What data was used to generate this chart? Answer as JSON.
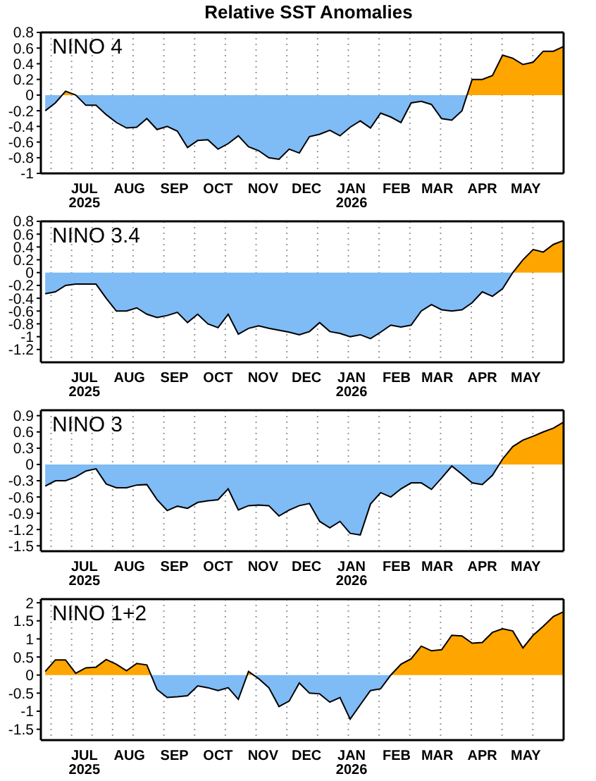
{
  "chart_data": [
    {
      "type": "area",
      "title": "Relative SST Anomalies",
      "annotations": [
        "NINO 4"
      ],
      "grid": true,
      "x": [
        "2025-06-04",
        "2025-06-11",
        "2025-06-18",
        "2025-06-25",
        "2025-07-02",
        "2025-07-09",
        "2025-07-16",
        "2025-07-23",
        "2025-07-30",
        "2025-08-06",
        "2025-08-13",
        "2025-08-20",
        "2025-08-27",
        "2025-09-03",
        "2025-09-10",
        "2025-09-17",
        "2025-09-24",
        "2025-10-01",
        "2025-10-08",
        "2025-10-15",
        "2025-10-22",
        "2025-10-29",
        "2025-11-05",
        "2025-11-12",
        "2025-11-19",
        "2025-11-26",
        "2025-12-03",
        "2025-12-10",
        "2025-12-17",
        "2025-12-24",
        "2025-12-31",
        "2026-01-07",
        "2026-01-14",
        "2026-01-21",
        "2026-01-28",
        "2026-02-04",
        "2026-02-11",
        "2026-02-18",
        "2026-02-25",
        "2026-03-04",
        "2026-03-11",
        "2026-03-18",
        "2026-03-25",
        "2026-04-01",
        "2026-04-08",
        "2026-04-15",
        "2026-04-22",
        "2026-04-29",
        "2026-05-06",
        "2026-05-13",
        "2026-05-20",
        "2026-05-27"
      ],
      "series": [
        {
          "values": [
            -0.2,
            -0.1,
            0.05,
            0.0,
            -0.13,
            -0.13,
            -0.25,
            -0.35,
            -0.42,
            -0.41,
            -0.3,
            -0.44,
            -0.4,
            -0.46,
            -0.67,
            -0.58,
            -0.57,
            -0.69,
            -0.62,
            -0.52,
            -0.66,
            -0.71,
            -0.8,
            -0.82,
            -0.69,
            -0.74,
            -0.53,
            -0.5,
            -0.45,
            -0.52,
            -0.41,
            -0.33,
            -0.42,
            -0.23,
            -0.28,
            -0.35,
            -0.1,
            -0.08,
            -0.12,
            -0.3,
            -0.32,
            -0.2,
            0.2,
            0.2,
            0.25,
            0.51,
            0.47,
            0.39,
            0.42,
            0.56,
            0.56,
            0.62
          ],
          "color": "#000000",
          "colors": [
            "#7fbbf5",
            "#7fbbf5",
            "#ffa500",
            "#ffa500",
            "#7fbbf5",
            "#7fbbf5",
            "#7fbbf5",
            "#7fbbf5",
            "#7fbbf5",
            "#7fbbf5",
            "#7fbbf5",
            "#7fbbf5",
            "#7fbbf5",
            "#7fbbf5",
            "#7fbbf5",
            "#7fbbf5",
            "#7fbbf5",
            "#7fbbf5",
            "#7fbbf5",
            "#7fbbf5",
            "#7fbbf5",
            "#7fbbf5",
            "#7fbbf5",
            "#7fbbf5",
            "#7fbbf5",
            "#7fbbf5",
            "#7fbbf5",
            "#7fbbf5",
            "#7fbbf5",
            "#7fbbf5",
            "#7fbbf5",
            "#7fbbf5",
            "#7fbbf5",
            "#7fbbf5",
            "#7fbbf5",
            "#7fbbf5",
            "#7fbbf5",
            "#7fbbf5",
            "#7fbbf5",
            "#7fbbf5",
            "#7fbbf5",
            "#7fbbf5",
            "#ffa500",
            "#ffa500",
            "#ffa500",
            "#ffa500",
            "#ffa500",
            "#ffa500",
            "#ffa500",
            "#ffa500",
            "#ffa500",
            "#ffa500"
          ]
        }
      ],
      "xlim": [
        "2025-06-01",
        "2026-05-27"
      ],
      "xticks": [
        {
          "value": "2025-07-01",
          "label": "JUL\n2025"
        },
        {
          "value": "2025-08-01",
          "label": "AUG"
        },
        {
          "value": "2025-09-01",
          "label": "SEP"
        },
        {
          "value": "2025-10-01",
          "label": "OCT"
        },
        {
          "value": "2025-11-01",
          "label": "NOV"
        },
        {
          "value": "2025-12-01",
          "label": "DEC"
        },
        {
          "value": "2026-01-01",
          "label": "JAN\n2026"
        },
        {
          "value": "2026-02-01",
          "label": "FEB"
        },
        {
          "value": "2026-03-01",
          "label": "MAR"
        },
        {
          "value": "2026-04-01",
          "label": "APR"
        },
        {
          "value": "2026-05-01",
          "label": "MAY"
        }
      ],
      "ylim": [
        -1,
        0.8
      ],
      "yticks": [
        -1,
        -0.8,
        -0.6,
        -0.4,
        -0.2,
        0,
        0.2,
        0.4,
        0.6,
        0.8
      ]
    },
    {
      "type": "area",
      "annotations": [
        "NINO 3.4"
      ],
      "grid": true,
      "x": [
        "2025-06-04",
        "2025-06-11",
        "2025-06-18",
        "2025-06-25",
        "2025-07-02",
        "2025-07-09",
        "2025-07-16",
        "2025-07-23",
        "2025-07-30",
        "2025-08-06",
        "2025-08-13",
        "2025-08-20",
        "2025-08-27",
        "2025-09-03",
        "2025-09-10",
        "2025-09-17",
        "2025-09-24",
        "2025-10-01",
        "2025-10-08",
        "2025-10-15",
        "2025-10-22",
        "2025-10-29",
        "2025-11-05",
        "2025-11-12",
        "2025-11-19",
        "2025-11-26",
        "2025-12-03",
        "2025-12-10",
        "2025-12-17",
        "2025-12-24",
        "2025-12-31",
        "2026-01-07",
        "2026-01-14",
        "2026-01-21",
        "2026-01-28",
        "2026-02-04",
        "2026-02-11",
        "2026-02-18",
        "2026-02-25",
        "2026-03-04",
        "2026-03-11",
        "2026-03-18",
        "2026-03-25",
        "2026-04-01",
        "2026-04-08",
        "2026-04-15",
        "2026-04-22",
        "2026-04-29",
        "2026-05-06",
        "2026-05-13",
        "2026-05-20",
        "2026-05-27"
      ],
      "series": [
        {
          "values": [
            -0.33,
            -0.3,
            -0.2,
            -0.18,
            -0.18,
            -0.18,
            -0.4,
            -0.6,
            -0.6,
            -0.55,
            -0.65,
            -0.7,
            -0.67,
            -0.62,
            -0.78,
            -0.65,
            -0.8,
            -0.86,
            -0.65,
            -0.96,
            -0.87,
            -0.83,
            -0.87,
            -0.9,
            -0.93,
            -0.97,
            -0.92,
            -0.78,
            -0.92,
            -0.95,
            -1.0,
            -0.97,
            -1.03,
            -0.93,
            -0.82,
            -0.85,
            -0.82,
            -0.6,
            -0.5,
            -0.58,
            -0.6,
            -0.58,
            -0.47,
            -0.3,
            -0.37,
            -0.25,
            0.0,
            0.2,
            0.36,
            0.32,
            0.44,
            0.5
          ],
          "color": "#000000",
          "colors": [
            "#7fbbf5",
            "#7fbbf5",
            "#7fbbf5",
            "#7fbbf5",
            "#7fbbf5",
            "#7fbbf5",
            "#7fbbf5",
            "#7fbbf5",
            "#7fbbf5",
            "#7fbbf5",
            "#7fbbf5",
            "#7fbbf5",
            "#7fbbf5",
            "#7fbbf5",
            "#7fbbf5",
            "#7fbbf5",
            "#7fbbf5",
            "#7fbbf5",
            "#7fbbf5",
            "#7fbbf5",
            "#7fbbf5",
            "#7fbbf5",
            "#7fbbf5",
            "#7fbbf5",
            "#7fbbf5",
            "#7fbbf5",
            "#7fbbf5",
            "#7fbbf5",
            "#7fbbf5",
            "#7fbbf5",
            "#7fbbf5",
            "#7fbbf5",
            "#7fbbf5",
            "#7fbbf5",
            "#7fbbf5",
            "#7fbbf5",
            "#7fbbf5",
            "#7fbbf5",
            "#7fbbf5",
            "#7fbbf5",
            "#7fbbf5",
            "#7fbbf5",
            "#7fbbf5",
            "#7fbbf5",
            "#7fbbf5",
            "#7fbbf5",
            "#ffa500",
            "#ffa500",
            "#ffa500",
            "#ffa500",
            "#ffa500",
            "#ffa500"
          ]
        }
      ],
      "xlim": [
        "2025-06-01",
        "2026-05-27"
      ],
      "xticks": [
        {
          "value": "2025-07-01",
          "label": "JUL\n2025"
        },
        {
          "value": "2025-08-01",
          "label": "AUG"
        },
        {
          "value": "2025-09-01",
          "label": "SEP"
        },
        {
          "value": "2025-10-01",
          "label": "OCT"
        },
        {
          "value": "2025-11-01",
          "label": "NOV"
        },
        {
          "value": "2025-12-01",
          "label": "DEC"
        },
        {
          "value": "2026-01-01",
          "label": "JAN\n2026"
        },
        {
          "value": "2026-02-01",
          "label": "FEB"
        },
        {
          "value": "2026-03-01",
          "label": "MAR"
        },
        {
          "value": "2026-04-01",
          "label": "APR"
        },
        {
          "value": "2026-05-01",
          "label": "MAY"
        }
      ],
      "ylim": [
        -1.4,
        0.8
      ],
      "yticks": [
        -1.2,
        -1,
        -0.8,
        -0.6,
        -0.4,
        -0.2,
        0,
        0.2,
        0.4,
        0.6,
        0.8
      ]
    },
    {
      "type": "area",
      "annotations": [
        "NINO 3"
      ],
      "grid": true,
      "x": [
        "2025-06-04",
        "2025-06-11",
        "2025-06-18",
        "2025-06-25",
        "2025-07-02",
        "2025-07-09",
        "2025-07-16",
        "2025-07-23",
        "2025-07-30",
        "2025-08-06",
        "2025-08-13",
        "2025-08-20",
        "2025-08-27",
        "2025-09-03",
        "2025-09-10",
        "2025-09-17",
        "2025-09-24",
        "2025-10-01",
        "2025-10-08",
        "2025-10-15",
        "2025-10-22",
        "2025-10-29",
        "2025-11-05",
        "2025-11-12",
        "2025-11-19",
        "2025-11-26",
        "2025-12-03",
        "2025-12-10",
        "2025-12-17",
        "2025-12-24",
        "2025-12-31",
        "2026-01-07",
        "2026-01-14",
        "2026-01-21",
        "2026-01-28",
        "2026-02-04",
        "2026-02-11",
        "2026-02-18",
        "2026-02-25",
        "2026-03-04",
        "2026-03-11",
        "2026-03-18",
        "2026-03-25",
        "2026-04-01",
        "2026-04-08",
        "2026-04-15",
        "2026-04-22",
        "2026-04-29",
        "2026-05-06",
        "2026-05-13",
        "2026-05-20",
        "2026-05-27"
      ],
      "series": [
        {
          "values": [
            -0.4,
            -0.3,
            -0.3,
            -0.23,
            -0.12,
            -0.08,
            -0.36,
            -0.43,
            -0.43,
            -0.38,
            -0.37,
            -0.65,
            -0.85,
            -0.77,
            -0.81,
            -0.7,
            -0.67,
            -0.65,
            -0.45,
            -0.84,
            -0.76,
            -0.75,
            -0.76,
            -0.95,
            -0.84,
            -0.76,
            -0.72,
            -1.05,
            -1.17,
            -1.05,
            -1.27,
            -1.3,
            -0.73,
            -0.52,
            -0.6,
            -0.45,
            -0.34,
            -0.34,
            -0.46,
            -0.25,
            -0.03,
            -0.18,
            -0.34,
            -0.37,
            -0.2,
            0.1,
            0.33,
            0.45,
            0.52,
            0.6,
            0.67,
            0.78
          ],
          "color": "#000000",
          "colors": [
            "#7fbbf5",
            "#7fbbf5",
            "#7fbbf5",
            "#7fbbf5",
            "#7fbbf5",
            "#7fbbf5",
            "#7fbbf5",
            "#7fbbf5",
            "#7fbbf5",
            "#7fbbf5",
            "#7fbbf5",
            "#7fbbf5",
            "#7fbbf5",
            "#7fbbf5",
            "#7fbbf5",
            "#7fbbf5",
            "#7fbbf5",
            "#7fbbf5",
            "#7fbbf5",
            "#7fbbf5",
            "#7fbbf5",
            "#7fbbf5",
            "#7fbbf5",
            "#7fbbf5",
            "#7fbbf5",
            "#7fbbf5",
            "#7fbbf5",
            "#7fbbf5",
            "#7fbbf5",
            "#7fbbf5",
            "#7fbbf5",
            "#7fbbf5",
            "#7fbbf5",
            "#7fbbf5",
            "#7fbbf5",
            "#7fbbf5",
            "#7fbbf5",
            "#7fbbf5",
            "#7fbbf5",
            "#7fbbf5",
            "#7fbbf5",
            "#7fbbf5",
            "#7fbbf5",
            "#7fbbf5",
            "#7fbbf5",
            "#ffa500",
            "#ffa500",
            "#ffa500",
            "#ffa500",
            "#ffa500",
            "#ffa500",
            "#ffa500"
          ]
        }
      ],
      "xlim": [
        "2025-06-01",
        "2026-05-27"
      ],
      "xticks": [
        {
          "value": "2025-07-01",
          "label": "JUL\n2025"
        },
        {
          "value": "2025-08-01",
          "label": "AUG"
        },
        {
          "value": "2025-09-01",
          "label": "SEP"
        },
        {
          "value": "2025-10-01",
          "label": "OCT"
        },
        {
          "value": "2025-11-01",
          "label": "NOV"
        },
        {
          "value": "2025-12-01",
          "label": "DEC"
        },
        {
          "value": "2026-01-01",
          "label": "JAN\n2026"
        },
        {
          "value": "2026-02-01",
          "label": "FEB"
        },
        {
          "value": "2026-03-01",
          "label": "MAR"
        },
        {
          "value": "2026-04-01",
          "label": "APR"
        },
        {
          "value": "2026-05-01",
          "label": "MAY"
        }
      ],
      "ylim": [
        -1.6,
        1.0
      ],
      "yticks": [
        -1.5,
        -1.2,
        -0.9,
        -0.6,
        -0.3,
        0,
        0.3,
        0.6,
        0.9
      ]
    },
    {
      "type": "area",
      "annotations": [
        "NINO 1+2"
      ],
      "grid": true,
      "x": [
        "2025-06-04",
        "2025-06-11",
        "2025-06-18",
        "2025-06-25",
        "2025-07-02",
        "2025-07-09",
        "2025-07-16",
        "2025-07-23",
        "2025-07-30",
        "2025-08-06",
        "2025-08-13",
        "2025-08-20",
        "2025-08-27",
        "2025-09-03",
        "2025-09-10",
        "2025-09-17",
        "2025-09-24",
        "2025-10-01",
        "2025-10-08",
        "2025-10-15",
        "2025-10-22",
        "2025-10-29",
        "2025-11-05",
        "2025-11-12",
        "2025-11-19",
        "2025-11-26",
        "2025-12-03",
        "2025-12-10",
        "2025-12-17",
        "2025-12-24",
        "2025-12-31",
        "2026-01-07",
        "2026-01-14",
        "2026-01-21",
        "2026-01-28",
        "2026-02-04",
        "2026-02-11",
        "2026-02-18",
        "2026-02-25",
        "2026-03-04",
        "2026-03-11",
        "2026-03-18",
        "2026-03-25",
        "2026-04-01",
        "2026-04-08",
        "2026-04-15",
        "2026-04-22",
        "2026-04-29",
        "2026-05-06",
        "2026-05-13",
        "2026-05-20",
        "2026-05-27"
      ],
      "series": [
        {
          "values": [
            0.1,
            0.42,
            0.42,
            0.05,
            0.2,
            0.22,
            0.43,
            0.3,
            0.12,
            0.32,
            0.28,
            -0.4,
            -0.62,
            -0.6,
            -0.57,
            -0.3,
            -0.35,
            -0.43,
            -0.35,
            -0.67,
            0.1,
            -0.1,
            -0.35,
            -0.87,
            -0.72,
            -0.22,
            -0.5,
            -0.52,
            -0.75,
            -0.62,
            -1.22,
            -0.82,
            -0.43,
            -0.38,
            0.0,
            0.3,
            0.45,
            0.8,
            0.67,
            0.7,
            1.1,
            1.08,
            0.88,
            0.9,
            1.18,
            1.28,
            1.22,
            0.75,
            1.1,
            1.35,
            1.62,
            1.75
          ],
          "color": "#000000",
          "colors": [
            "#ffa500",
            "#ffa500",
            "#ffa500",
            "#ffa500",
            "#ffa500",
            "#ffa500",
            "#ffa500",
            "#ffa500",
            "#ffa500",
            "#ffa500",
            "#ffa500",
            "#7fbbf5",
            "#7fbbf5",
            "#7fbbf5",
            "#7fbbf5",
            "#7fbbf5",
            "#7fbbf5",
            "#7fbbf5",
            "#7fbbf5",
            "#7fbbf5",
            "#ffa500",
            "#7fbbf5",
            "#7fbbf5",
            "#7fbbf5",
            "#7fbbf5",
            "#7fbbf5",
            "#7fbbf5",
            "#7fbbf5",
            "#7fbbf5",
            "#7fbbf5",
            "#7fbbf5",
            "#7fbbf5",
            "#7fbbf5",
            "#7fbbf5",
            "#ffa500",
            "#ffa500",
            "#ffa500",
            "#ffa500",
            "#ffa500",
            "#ffa500",
            "#ffa500",
            "#ffa500",
            "#ffa500",
            "#ffa500",
            "#ffa500",
            "#ffa500",
            "#ffa500",
            "#ffa500",
            "#ffa500",
            "#ffa500",
            "#ffa500",
            "#ffa500"
          ]
        }
      ],
      "xlim": [
        "2025-06-01",
        "2026-05-27"
      ],
      "xticks": [
        {
          "value": "2025-07-01",
          "label": "JUL\n2025"
        },
        {
          "value": "2025-08-01",
          "label": "AUG"
        },
        {
          "value": "2025-09-01",
          "label": "SEP"
        },
        {
          "value": "2025-10-01",
          "label": "OCT"
        },
        {
          "value": "2025-11-01",
          "label": "NOV"
        },
        {
          "value": "2025-12-01",
          "label": "DEC"
        },
        {
          "value": "2026-01-01",
          "label": "JAN\n2026"
        },
        {
          "value": "2026-02-01",
          "label": "FEB"
        },
        {
          "value": "2026-03-01",
          "label": "MAR"
        },
        {
          "value": "2026-04-01",
          "label": "APR"
        },
        {
          "value": "2026-05-01",
          "label": "MAY"
        }
      ],
      "ylim": [
        -1.8,
        2.1
      ],
      "yticks": [
        -1.5,
        -1,
        -0.5,
        0,
        0.5,
        1,
        1.5,
        2
      ]
    }
  ]
}
